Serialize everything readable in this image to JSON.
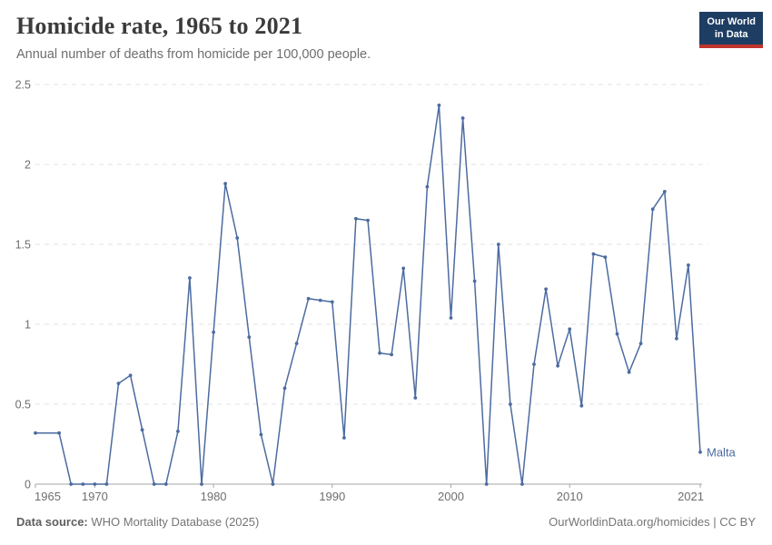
{
  "header": {
    "title": "Homicide rate, 1965 to 2021",
    "subtitle": "Annual number of deaths from homicide per 100,000 people."
  },
  "logo": {
    "line1": "Our World",
    "line2": "in Data",
    "bg_color": "#1d3d63",
    "accent_color": "#c0342e"
  },
  "footer": {
    "source_label": "Data source:",
    "source_text": " WHO Mortality Database (2025)",
    "right_text": "OurWorldinData.org/homicides | CC BY"
  },
  "chart_data": {
    "type": "line",
    "title": "Homicide rate, 1965 to 2021",
    "xlabel": "",
    "ylabel": "Annual deaths from homicide per 100,000 people",
    "xlim": [
      1965,
      2021
    ],
    "ylim": [
      0,
      2.5
    ],
    "x_ticks": [
      1965,
      1970,
      1980,
      1990,
      2000,
      2010,
      2021
    ],
    "y_ticks": [
      0,
      0.5,
      1,
      1.5,
      2,
      2.5
    ],
    "grid": "dashed-horizontal",
    "axis_color": "#a6a6a6",
    "grid_color": "#e2e2e2",
    "tick_label_color": "#6e6e6e",
    "series": [
      {
        "name": "Malta",
        "color": "#4c6ba0",
        "end_label": "Malta",
        "points": [
          [
            1965,
            0.32
          ],
          [
            1967,
            0.32
          ],
          [
            1968,
            0
          ],
          [
            1969,
            0
          ],
          [
            1970,
            0
          ],
          [
            1971,
            0
          ],
          [
            1972,
            0.63
          ],
          [
            1973,
            0.68
          ],
          [
            1974,
            0.34
          ],
          [
            1975,
            0
          ],
          [
            1976,
            0
          ],
          [
            1977,
            0.33
          ],
          [
            1978,
            1.29
          ],
          [
            1979,
            0
          ],
          [
            1980,
            0.95
          ],
          [
            1981,
            1.88
          ],
          [
            1982,
            1.54
          ],
          [
            1983,
            0.92
          ],
          [
            1984,
            0.31
          ],
          [
            1985,
            0
          ],
          [
            1986,
            0.6
          ],
          [
            1987,
            0.88
          ],
          [
            1988,
            1.16
          ],
          [
            1989,
            1.15
          ],
          [
            1990,
            1.14
          ],
          [
            1991,
            0.29
          ],
          [
            1992,
            1.66
          ],
          [
            1993,
            1.65
          ],
          [
            1994,
            0.82
          ],
          [
            1995,
            0.81
          ],
          [
            1996,
            1.35
          ],
          [
            1997,
            0.54
          ],
          [
            1998,
            1.86
          ],
          [
            1999,
            2.37
          ],
          [
            2000,
            1.04
          ],
          [
            2001,
            2.29
          ],
          [
            2002,
            1.27
          ],
          [
            2003,
            0
          ],
          [
            2004,
            1.5
          ],
          [
            2005,
            0.5
          ],
          [
            2006,
            0
          ],
          [
            2007,
            0.75
          ],
          [
            2008,
            1.22
          ],
          [
            2009,
            0.74
          ],
          [
            2010,
            0.97
          ],
          [
            2011,
            0.49
          ],
          [
            2012,
            1.44
          ],
          [
            2013,
            1.42
          ],
          [
            2014,
            0.94
          ],
          [
            2015,
            0.7
          ],
          [
            2016,
            0.88
          ],
          [
            2017,
            1.72
          ],
          [
            2018,
            1.83
          ],
          [
            2019,
            0.91
          ],
          [
            2020,
            1.37
          ],
          [
            2021,
            0.2
          ]
        ]
      }
    ]
  }
}
